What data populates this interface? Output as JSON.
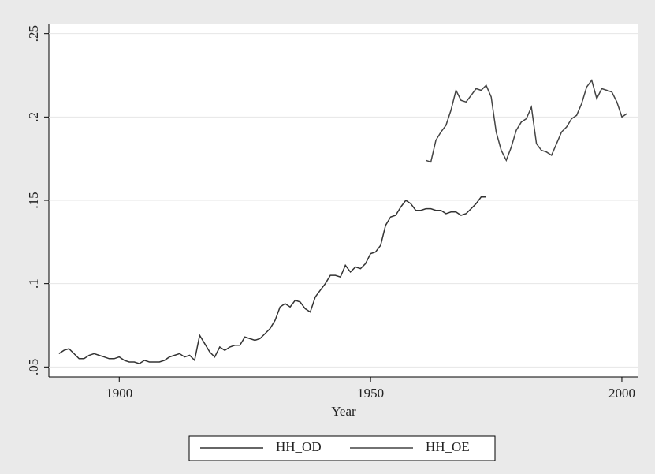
{
  "chart_data": {
    "type": "line",
    "x_label": "Year",
    "xlim": [
      1886,
      2003.3
    ],
    "xticks": [
      1900,
      1950,
      2000
    ],
    "ylim": [
      0.044,
      0.256
    ],
    "yticks": [
      {
        "value": 0.05,
        "label": ".05"
      },
      {
        "value": 0.1,
        "label": ".1"
      },
      {
        "value": 0.15,
        "label": ".15"
      },
      {
        "value": 0.2,
        "label": ".2"
      },
      {
        "value": 0.25,
        "label": ".25"
      }
    ],
    "grid": true,
    "legend": "bottom",
    "series": [
      {
        "name": "HH_OD",
        "color": "#333333",
        "x": [
          1888,
          1889,
          1890,
          1891,
          1892,
          1893,
          1894,
          1895,
          1896,
          1897,
          1898,
          1899,
          1900,
          1901,
          1902,
          1903,
          1904,
          1905,
          1906,
          1907,
          1908,
          1909,
          1910,
          1911,
          1912,
          1913,
          1914,
          1915,
          1916,
          1917,
          1918,
          1919,
          1920,
          1921,
          1922,
          1923,
          1924,
          1925,
          1926,
          1927,
          1928,
          1929,
          1930,
          1931,
          1932,
          1933,
          1934,
          1935,
          1936,
          1937,
          1938,
          1939,
          1940,
          1941,
          1942,
          1943,
          1944,
          1945,
          1946,
          1947,
          1948,
          1949,
          1950,
          1951,
          1952,
          1953,
          1954,
          1955,
          1956,
          1957,
          1958,
          1959,
          1960,
          1961,
          1962,
          1963,
          1964,
          1965,
          1966,
          1967,
          1968,
          1969,
          1970,
          1971,
          1972,
          1973
        ],
        "values": [
          0.058,
          0.06,
          0.061,
          0.058,
          0.055,
          0.055,
          0.057,
          0.058,
          0.057,
          0.056,
          0.055,
          0.055,
          0.056,
          0.054,
          0.053,
          0.053,
          0.052,
          0.054,
          0.053,
          0.053,
          0.053,
          0.054,
          0.056,
          0.057,
          0.058,
          0.056,
          0.057,
          0.054,
          0.069,
          0.064,
          0.059,
          0.056,
          0.062,
          0.06,
          0.062,
          0.063,
          0.063,
          0.068,
          0.067,
          0.066,
          0.067,
          0.07,
          0.073,
          0.078,
          0.086,
          0.088,
          0.086,
          0.09,
          0.089,
          0.085,
          0.083,
          0.092,
          0.096,
          0.1,
          0.105,
          0.105,
          0.104,
          0.111,
          0.107,
          0.11,
          0.109,
          0.112,
          0.118,
          0.119,
          0.123,
          0.135,
          0.14,
          0.141,
          0.146,
          0.15,
          0.148,
          0.144,
          0.144,
          0.145,
          0.145,
          0.144,
          0.144,
          0.142,
          0.143,
          0.143,
          0.141,
          0.142,
          0.145,
          0.148,
          0.152,
          0.152
        ]
      },
      {
        "name": "HH_OE",
        "color": "#444444",
        "x": [
          1961,
          1962,
          1963,
          1964,
          1965,
          1966,
          1967,
          1968,
          1969,
          1970,
          1971,
          1972,
          1973,
          1974,
          1975,
          1976,
          1977,
          1978,
          1979,
          1980,
          1981,
          1982,
          1983,
          1984,
          1985,
          1986,
          1987,
          1988,
          1989,
          1990,
          1991,
          1992,
          1993,
          1994,
          1995,
          1996,
          1997,
          1998,
          1999,
          2000,
          2001
        ],
        "values": [
          0.174,
          0.173,
          0.186,
          0.191,
          0.195,
          0.204,
          0.216,
          0.21,
          0.209,
          0.213,
          0.217,
          0.216,
          0.219,
          0.212,
          0.191,
          0.18,
          0.174,
          0.182,
          0.192,
          0.197,
          0.199,
          0.206,
          0.184,
          0.18,
          0.179,
          0.177,
          0.184,
          0.191,
          0.194,
          0.199,
          0.201,
          0.208,
          0.218,
          0.222,
          0.211,
          0.217,
          0.216,
          0.215,
          0.209,
          0.2,
          0.202
        ]
      }
    ]
  }
}
